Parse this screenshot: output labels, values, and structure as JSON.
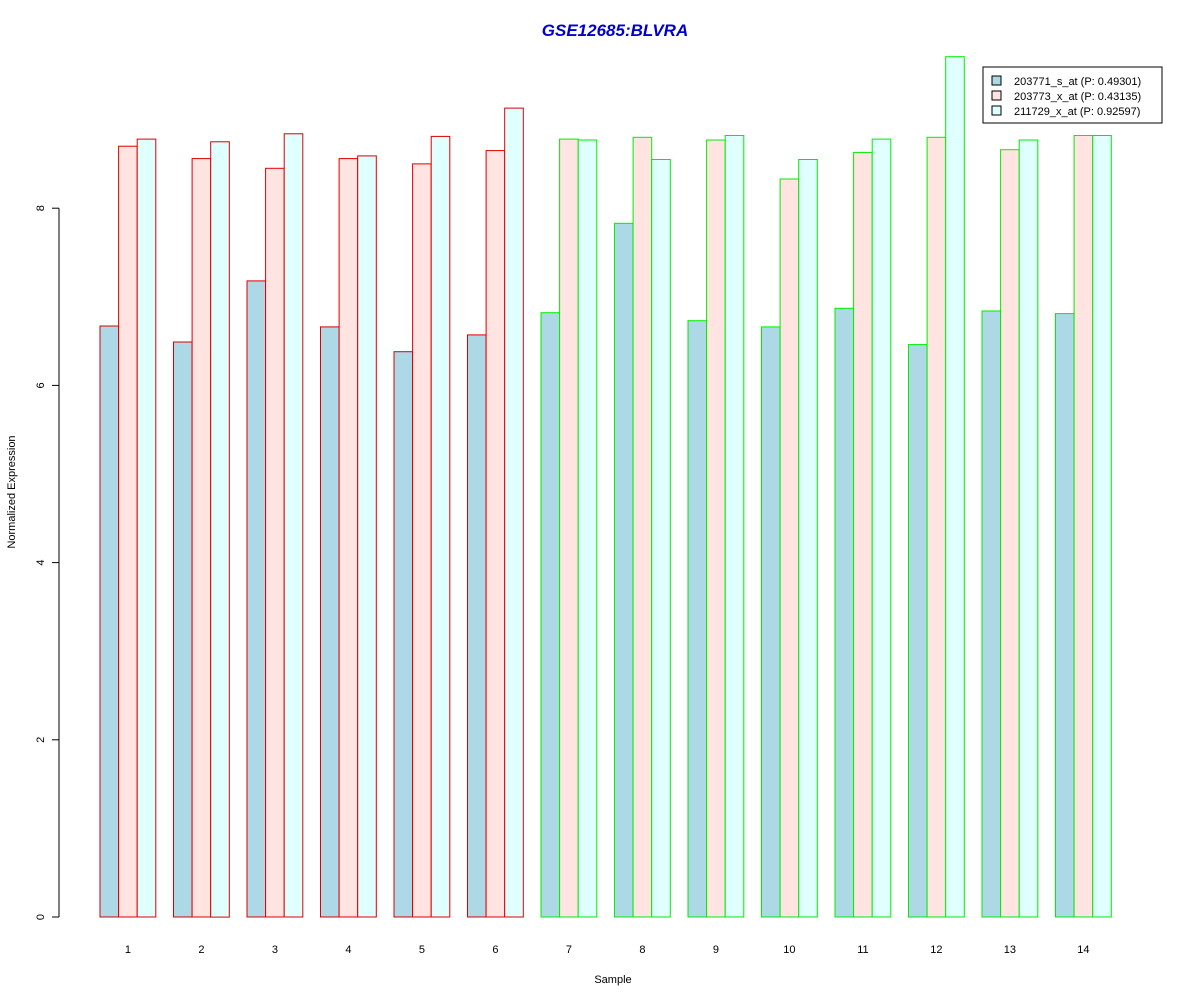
{
  "chart_data": {
    "type": "bar",
    "title": "GSE12685:BLVRA",
    "xlabel": "Sample",
    "ylabel": "Normalized Expression",
    "categories": [
      "1",
      "2",
      "3",
      "4",
      "5",
      "6",
      "7",
      "8",
      "9",
      "10",
      "11",
      "12",
      "13",
      "14"
    ],
    "ylim": [
      0,
      9.8
    ],
    "yticks": [
      "0",
      "2",
      "4",
      "6",
      "8"
    ],
    "series": [
      {
        "name": "203771_s_at (P: 0.49301)",
        "fill": "#add8e6",
        "values": [
          6.67,
          6.49,
          7.18,
          6.66,
          6.38,
          6.57,
          6.82,
          7.83,
          6.73,
          6.66,
          6.87,
          6.46,
          6.84,
          6.81
        ]
      },
      {
        "name": "203773_x_at (P: 0.43135)",
        "fill": "#ffe4e1",
        "values": [
          8.7,
          8.56,
          8.45,
          8.56,
          8.5,
          8.65,
          8.78,
          8.8,
          8.77,
          8.33,
          8.63,
          8.8,
          8.66,
          8.82
        ]
      },
      {
        "name": "211729_x_at (P: 0.92597)",
        "fill": "#e0ffff",
        "values": [
          8.78,
          8.75,
          8.84,
          8.59,
          8.81,
          9.13,
          8.77,
          8.55,
          8.82,
          8.55,
          8.78,
          9.71,
          8.77,
          8.82
        ]
      }
    ],
    "group_borders": [
      "#dd0000",
      "#dd0000",
      "#dd0000",
      "#dd0000",
      "#dd0000",
      "#dd0000",
      "#00ee00",
      "#00ee00",
      "#00ee00",
      "#00ee00",
      "#00ee00",
      "#00ee00",
      "#00ee00",
      "#00ee00"
    ],
    "legend_position": "top-right",
    "grid": false
  }
}
